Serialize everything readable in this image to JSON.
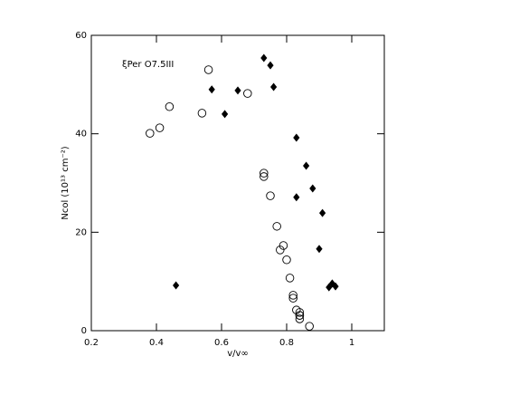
{
  "chart_data": {
    "type": "scatter",
    "annotation": "ξPer  O7.5III",
    "xlabel": "v/v∞",
    "ylabel": "Ncol  (10¹³ cm⁻²)",
    "xlim": [
      0.2,
      1.1
    ],
    "ylim": [
      0,
      60
    ],
    "xticks": [
      0.2,
      0.4,
      0.6,
      0.8,
      1
    ],
    "yticks": [
      0,
      20,
      40,
      60
    ],
    "series": [
      {
        "color": "#000000",
        "marker": "circle-open",
        "x": [
          0.38,
          0.41,
          0.44,
          0.54,
          0.56,
          0.68,
          0.73,
          0.73,
          0.75,
          0.77,
          0.79,
          0.78,
          0.8,
          0.81,
          0.82,
          0.82,
          0.83,
          0.84,
          0.84,
          0.84,
          0.84,
          0.87
        ],
        "values": [
          40.1,
          41.2,
          45.5,
          44.2,
          53.0,
          48.2,
          32.0,
          31.3,
          27.4,
          21.2,
          17.3,
          16.4,
          14.4,
          10.7,
          7.2,
          6.6,
          4.2,
          3.7,
          3.1,
          3.1,
          2.4,
          0.9
        ]
      },
      {
        "color": "#000000",
        "marker": "diamond",
        "x": [
          0.46,
          0.57,
          0.65,
          0.61,
          0.73,
          0.75,
          0.76,
          0.83,
          0.86,
          0.88,
          0.83,
          0.91,
          0.9,
          0.94,
          0.95,
          0.93
        ],
        "values": [
          9.2,
          49.0,
          48.8,
          44.0,
          55.4,
          53.9,
          49.5,
          39.2,
          33.5,
          28.9,
          27.1,
          23.9,
          16.6,
          9.6,
          9.0,
          8.8
        ]
      }
    ]
  }
}
